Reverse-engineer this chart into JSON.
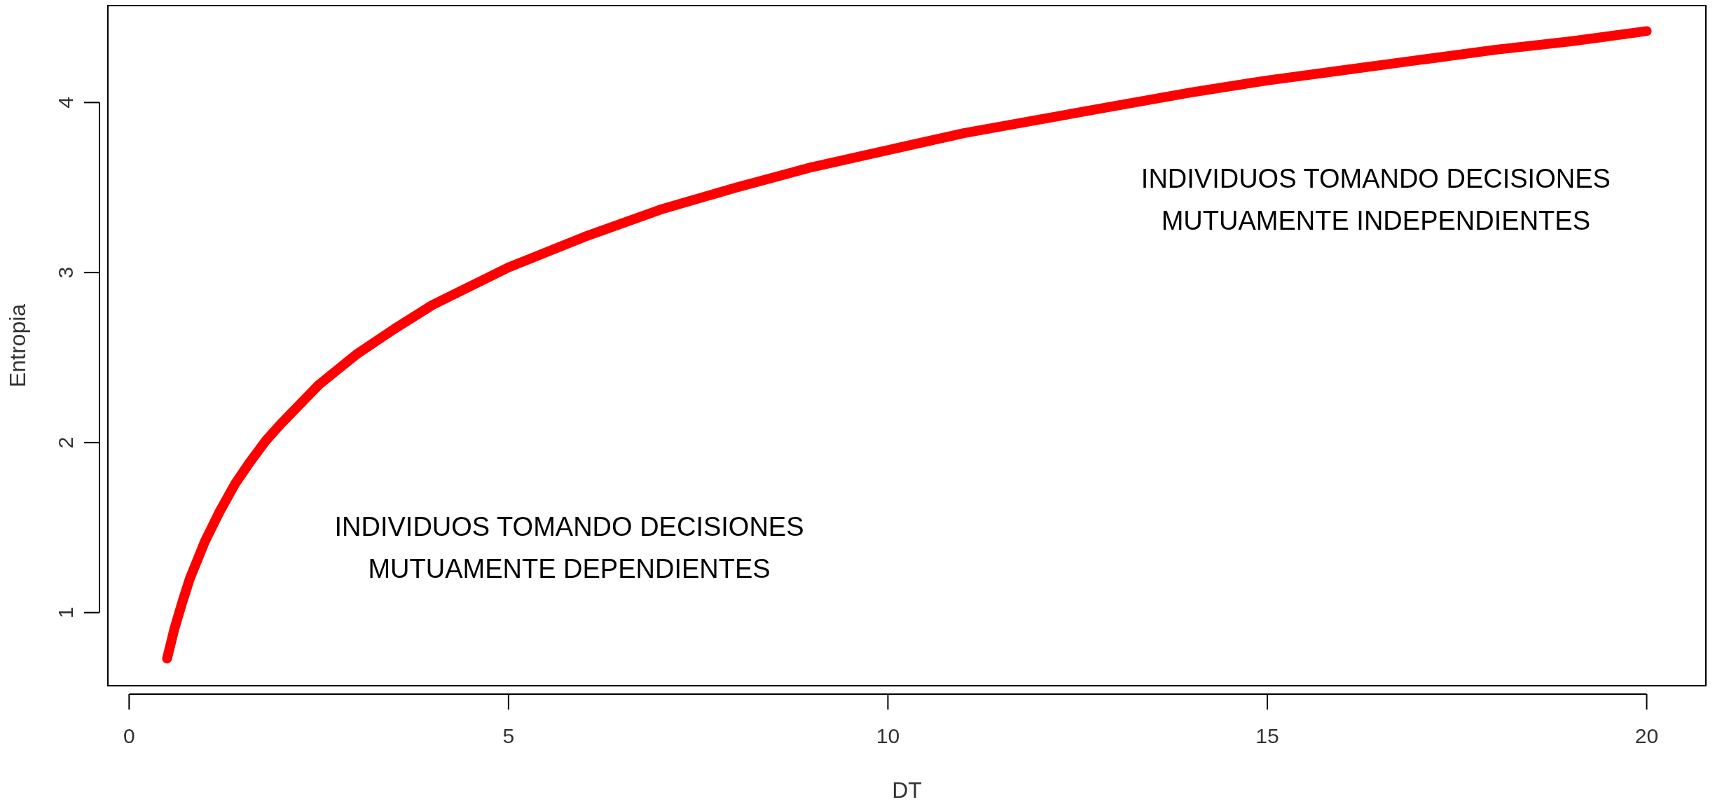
{
  "chart_data": {
    "type": "line",
    "xlabel": "DT",
    "ylabel": "Entropia",
    "x": [
      0.5,
      0.6,
      0.7,
      0.8,
      0.9,
      1,
      1.2,
      1.4,
      1.6,
      1.8,
      2,
      2.5,
      3,
      3.5,
      4,
      4.5,
      5,
      6,
      7,
      8,
      9,
      10,
      11,
      12,
      13,
      14,
      15,
      16,
      17,
      18,
      19,
      20
    ],
    "series": [
      {
        "color": "#ff0000",
        "values": [
          0.73,
          0.91,
          1.06,
          1.2,
          1.31,
          1.42,
          1.6,
          1.76,
          1.89,
          2.01,
          2.11,
          2.34,
          2.52,
          2.67,
          2.81,
          2.92,
          3.03,
          3.21,
          3.37,
          3.5,
          3.62,
          3.72,
          3.82,
          3.9,
          3.98,
          4.06,
          4.13,
          4.19,
          4.25,
          4.31,
          4.36,
          4.42
        ]
      }
    ],
    "xlim": [
      -0.28,
      20.78
    ],
    "ylim": [
      0.57,
      4.57
    ],
    "xticks": [
      0,
      5,
      10,
      15,
      20
    ],
    "yticks": [
      1,
      2,
      3,
      4
    ],
    "grid": false,
    "marker": "none",
    "line_style": "solid",
    "annotations": [
      "INDIVIDUOS TOMANDO DECISIONES\nMUTUAMENTE DEPENDIENTES",
      "INDIVIDUOS TOMANDO DECISIONES\nMUTUAMENTE INDEPENDIENTES"
    ]
  }
}
